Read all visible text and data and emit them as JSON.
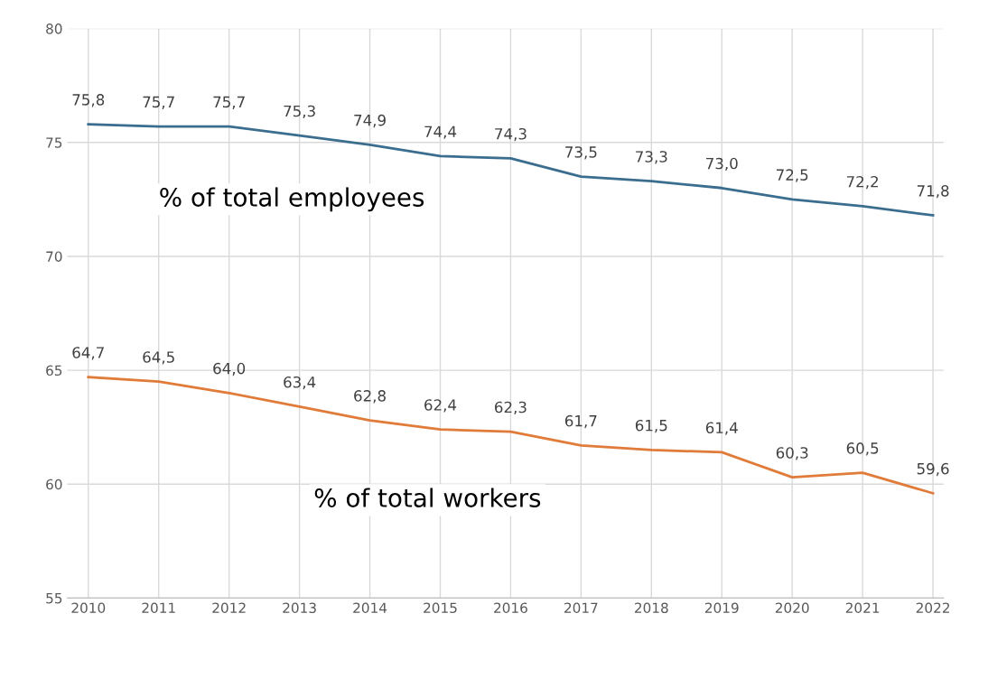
{
  "chart_data": {
    "type": "line",
    "categories": [
      "2010",
      "2011",
      "2012",
      "2013",
      "2014",
      "2015",
      "2016",
      "2017",
      "2018",
      "2019",
      "2020",
      "2021",
      "2022"
    ],
    "series": [
      {
        "name": "% of total employees",
        "color": "#3b6e8e",
        "values": [
          75.8,
          75.7,
          75.7,
          75.3,
          74.9,
          74.4,
          74.3,
          73.5,
          73.3,
          73.0,
          72.5,
          72.2,
          71.8
        ],
        "value_labels": [
          "75,8",
          "75,7",
          "75,7",
          "75,3",
          "74,9",
          "74,4",
          "74,3",
          "73,5",
          "73,3",
          "73,0",
          "72,5",
          "72,2",
          "71,8"
        ]
      },
      {
        "name": "% of total workers",
        "color": "#e07b39",
        "values": [
          64.7,
          64.5,
          64.0,
          63.4,
          62.8,
          62.4,
          62.3,
          61.7,
          61.5,
          61.4,
          60.3,
          60.5,
          59.6
        ],
        "value_labels": [
          "64,7",
          "64,5",
          "64,0",
          "63,4",
          "62,8",
          "62,4",
          "62,3",
          "61,7",
          "61,5",
          "61,4",
          "60,3",
          "60,5",
          "59,6"
        ]
      }
    ],
    "ylim": [
      55,
      80
    ],
    "yticks": [
      55,
      60,
      65,
      70,
      75,
      80
    ],
    "grid": true,
    "legend": false
  }
}
